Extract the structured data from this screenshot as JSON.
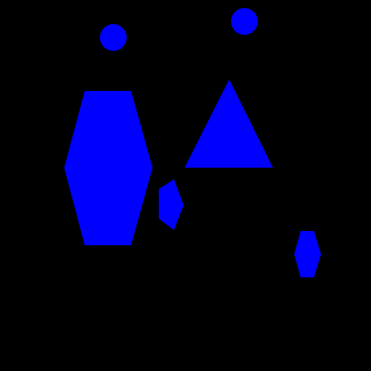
{
  "background_color": "#000000",
  "shapes": [
    {
      "name": "circle-top-left",
      "kind": "circle",
      "color": "#0000ff"
    },
    {
      "name": "circle-top-right",
      "kind": "circle",
      "color": "#0000ff"
    },
    {
      "name": "large-hexagon",
      "kind": "hexagon",
      "color": "#0000ff"
    },
    {
      "name": "triangle",
      "kind": "triangle",
      "color": "#0000ff"
    },
    {
      "name": "small-hexagon-center",
      "kind": "hexagon",
      "color": "#0000ff"
    },
    {
      "name": "small-hexagon-right",
      "kind": "hexagon",
      "color": "#0000ff"
    }
  ]
}
